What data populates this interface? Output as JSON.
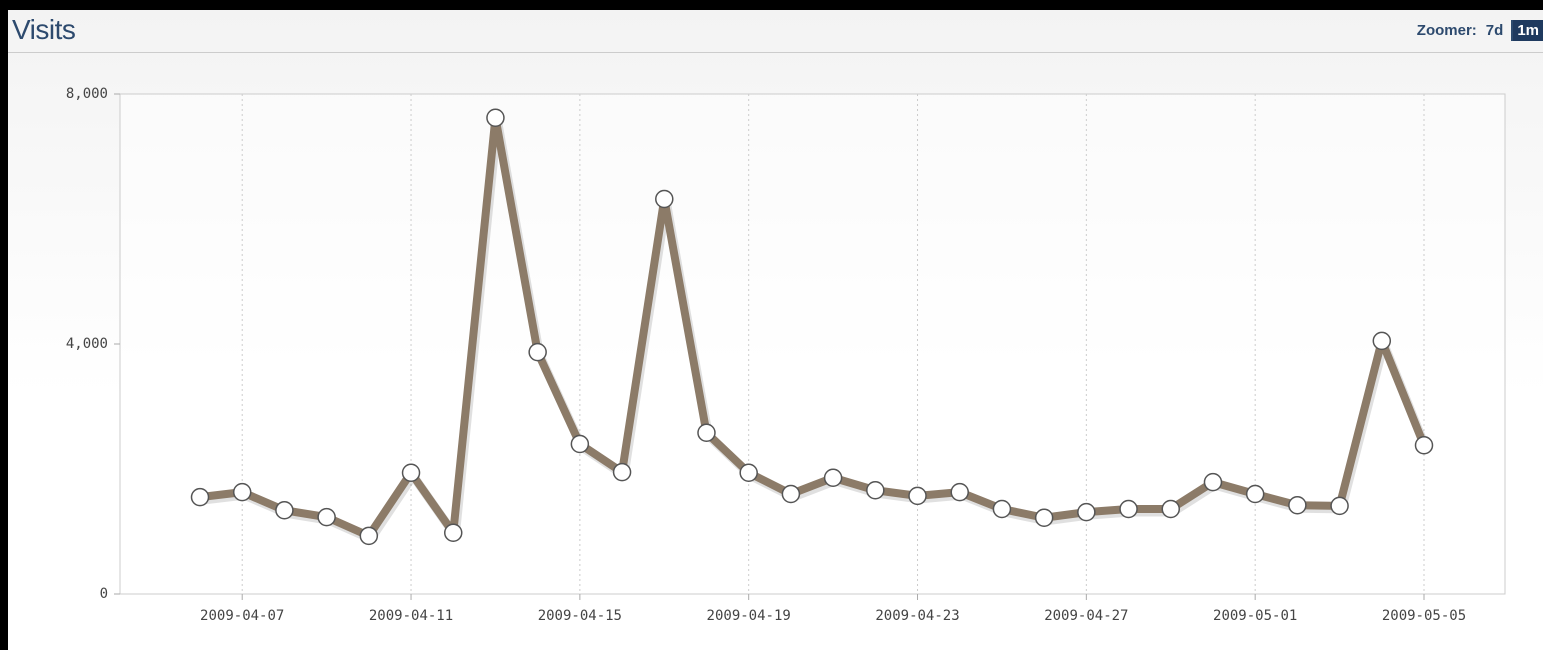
{
  "chart_data": {
    "type": "line",
    "title": "Visits",
    "zoomer_label": "Zoomer:",
    "zoom_options": [
      "7d",
      "1m"
    ],
    "active_zoom": "1m",
    "x": [
      "2009-04-06",
      "2009-04-07",
      "2009-04-08",
      "2009-04-09",
      "2009-04-10",
      "2009-04-11",
      "2009-04-12",
      "2009-04-13",
      "2009-04-14",
      "2009-04-15",
      "2009-04-16",
      "2009-04-17",
      "2009-04-18",
      "2009-04-19",
      "2009-04-20",
      "2009-04-21",
      "2009-04-22",
      "2009-04-23",
      "2009-04-24",
      "2009-04-25",
      "2009-04-26",
      "2009-04-27",
      "2009-04-28",
      "2009-04-29",
      "2009-04-30",
      "2009-05-01",
      "2009-05-02",
      "2009-05-03",
      "2009-05-04",
      "2009-05-05"
    ],
    "xticks": [
      "2009-04-07",
      "2009-04-11",
      "2009-04-15",
      "2009-04-19",
      "2009-04-23",
      "2009-04-27",
      "2009-05-01",
      "2009-05-05"
    ],
    "series": [
      {
        "color": "#8c7b68",
        "values": [
          1550,
          1630,
          1340,
          1230,
          930,
          1940,
          980,
          7620,
          3870,
          2400,
          1950,
          6320,
          2580,
          1940,
          1600,
          1860,
          1660,
          1570,
          1630,
          1360,
          1220,
          1310,
          1360,
          1360,
          1790,
          1600,
          1420,
          1410,
          4050,
          2380
        ]
      }
    ],
    "ylim": [
      0,
      8000
    ],
    "yticks": [
      0,
      {
        "value": 4000,
        "label": "4,000"
      },
      {
        "value": 8000,
        "label": "8,000"
      }
    ],
    "grid": true
  }
}
